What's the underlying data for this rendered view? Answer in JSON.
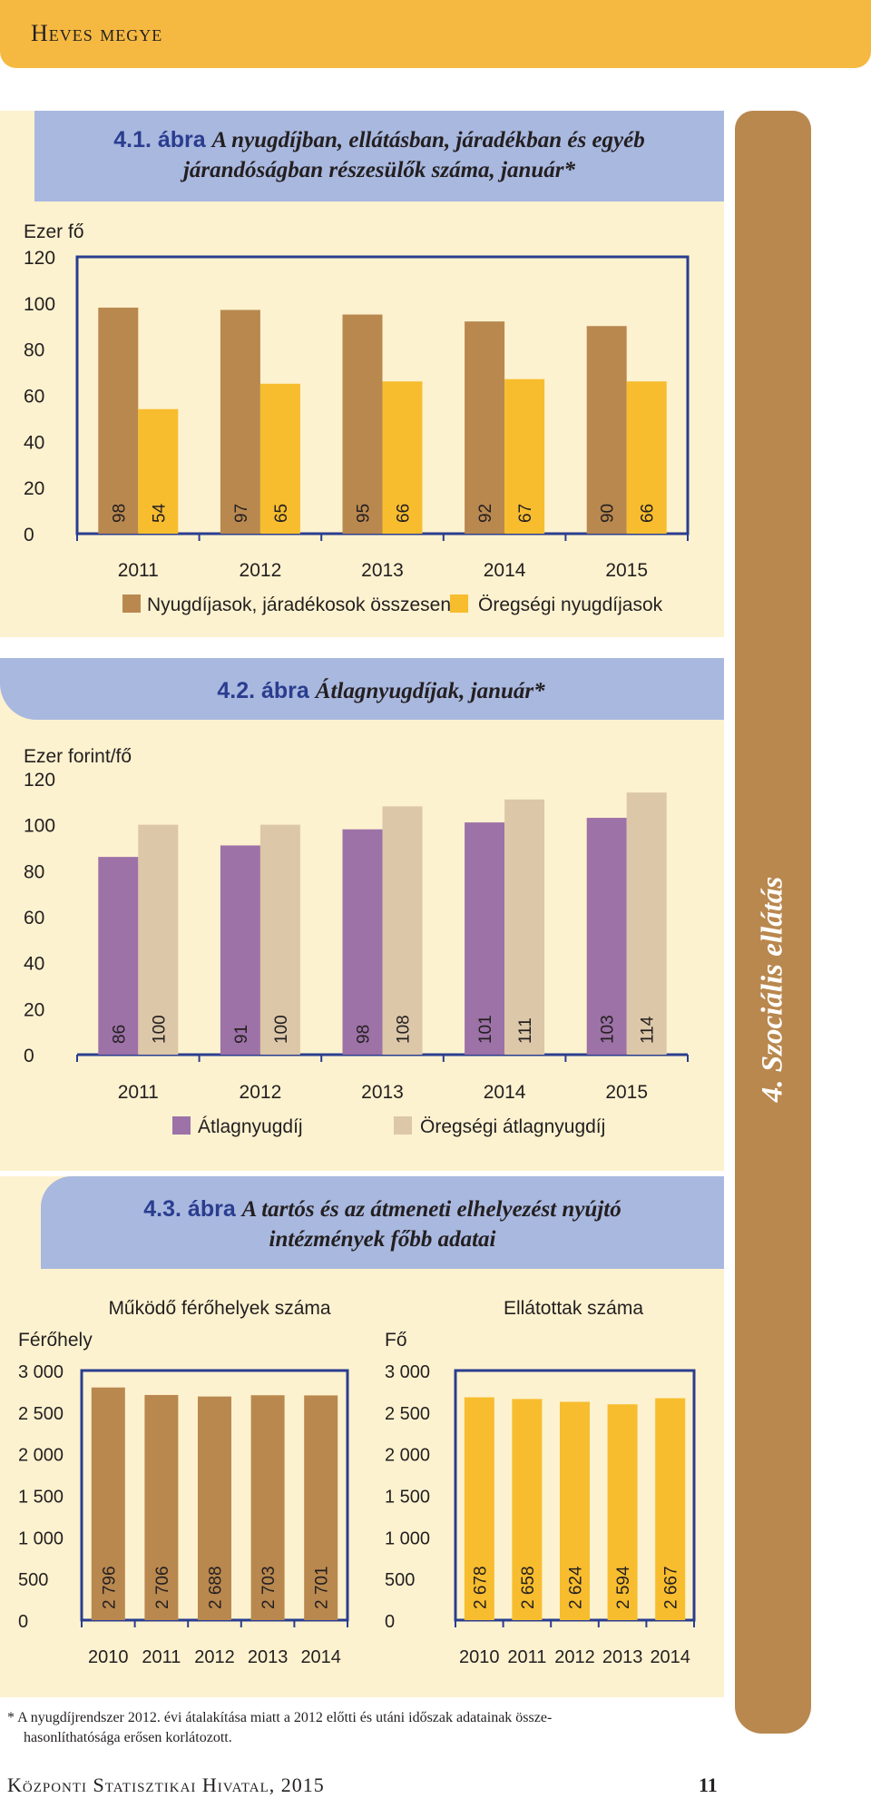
{
  "header": {
    "title": "Heves megye"
  },
  "side_tab": {
    "label": "4. Szociális ellátás"
  },
  "figures": [
    {
      "number": "4.1. ábra",
      "title_line1": "A nyugdíjban, ellátásban, járadékban és egyéb",
      "title_line2": "járandóságban részesülők száma, január*"
    },
    {
      "number": "4.2. ábra",
      "title_line1": "Átlagnyugdíjak, január*"
    },
    {
      "number": "4.3. ábra",
      "title_line1": "A tartós és az átmeneti elhelyezést nyújtó",
      "title_line2": "intézmények főbb adatai"
    }
  ],
  "colors": {
    "brown": "#b9884f",
    "gold": "#f7bd2f",
    "purple": "#9d72a7",
    "beige": "#dcc7a8",
    "navy": "#2a3d8f"
  },
  "chart_data": [
    {
      "type": "bar",
      "ylabel": "Ezer fő",
      "ylim": [
        0,
        120
      ],
      "yticks": [
        "0",
        "20",
        "40",
        "60",
        "80",
        "100",
        "120"
      ],
      "categories": [
        "2011",
        "2012",
        "2013",
        "2014",
        "2015"
      ],
      "series": [
        {
          "name": "Nyugdíjasok, járadékosok összesen",
          "values": [
            98,
            97,
            95,
            92,
            90
          ],
          "labels": [
            "98",
            "97",
            "95",
            "92",
            "90"
          ],
          "color": "#b9884f"
        },
        {
          "name": "Öregségi nyugdíjasok",
          "values": [
            54,
            65,
            66,
            67,
            66
          ],
          "labels": [
            "54",
            "65",
            "66",
            "67",
            "66"
          ],
          "color": "#f7bd2f"
        }
      ],
      "frame": true,
      "legend": "bottom"
    },
    {
      "type": "bar",
      "ylabel": "Ezer forint/fő",
      "ylim": [
        0,
        120
      ],
      "yticks": [
        "0",
        "20",
        "40",
        "60",
        "80",
        "100",
        "120"
      ],
      "categories": [
        "2011",
        "2012",
        "2013",
        "2014",
        "2015"
      ],
      "series": [
        {
          "name": "Átlagnyugdíj",
          "values": [
            86,
            91,
            98,
            101,
            103
          ],
          "labels": [
            "86",
            "91",
            "98",
            "101",
            "103"
          ],
          "color": "#9d72a7"
        },
        {
          "name": "Öregségi átlagnyugdíj",
          "values": [
            100,
            100,
            108,
            111,
            114
          ],
          "labels": [
            "100",
            "100",
            "108",
            "111",
            "114"
          ],
          "color": "#dcc7a8"
        }
      ],
      "frame": false,
      "legend": "bottom"
    },
    {
      "type": "bar",
      "title": "Működő férőhelyek száma",
      "ylabel": "Férőhely",
      "ylim": [
        0,
        3000
      ],
      "yticks": [
        "0",
        "500",
        "1 000",
        "1 500",
        "2 000",
        "2 500",
        "3 000"
      ],
      "categories": [
        "2010",
        "2011",
        "2012",
        "2013",
        "2014"
      ],
      "series": [
        {
          "values": [
            2796,
            2706,
            2688,
            2703,
            2701
          ],
          "labels": [
            "2 796",
            "2 706",
            "2 688",
            "2 703",
            "2 701"
          ],
          "color": "#b9884f"
        }
      ],
      "frame": true
    },
    {
      "type": "bar",
      "title": "Ellátottak száma",
      "ylabel": "Fő",
      "ylim": [
        0,
        3000
      ],
      "yticks": [
        "0",
        "500",
        "1 000",
        "1 500",
        "2 000",
        "2 500",
        "3 000"
      ],
      "categories": [
        "2010",
        "2011",
        "2012",
        "2013",
        "2014"
      ],
      "series": [
        {
          "values": [
            2678,
            2658,
            2624,
            2594,
            2667
          ],
          "labels": [
            "2 678",
            "2 658",
            "2 624",
            "2 594",
            "2 667"
          ],
          "color": "#f7bd2f"
        }
      ],
      "frame": true
    }
  ],
  "footnote": {
    "line1": "* A nyugdíjrendszer 2012. évi átalakítása miatt a 2012 előtti és utáni időszak adatainak össze-",
    "line2": "hasonlíthatósága erősen korlátozott."
  },
  "footer": {
    "publisher": "Központi Statisztikai Hivatal, 2015",
    "page_number": "11"
  }
}
